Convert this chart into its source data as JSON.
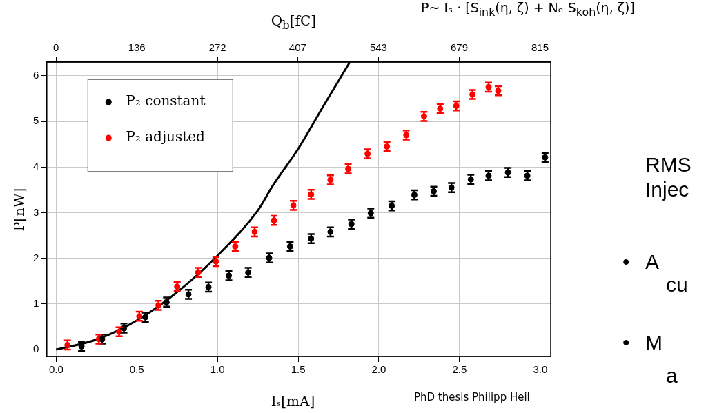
{
  "chart_data": {
    "type": "scatter",
    "xlabel": "Iₛ[mA]",
    "ylabel": "P[nW]",
    "x2label": "Q$_{b}$[fC]",
    "annotations": [
      "P~ Iₛ · [S$_{ink}$(η, ζ) + Nₑ S$_{koh}$(η, ζ)]",
      "PhD thesis Philipp Heil",
      "RMS",
      "Injec",
      "A",
      "cu",
      "M",
      "a",
      "•",
      "•"
    ],
    "xlim": [
      -0.06,
      3.065
    ],
    "xticks": [
      {
        "value": 0,
        "label": "0.0"
      },
      {
        "value": 0.5,
        "label": "0.5"
      },
      {
        "value": 1,
        "label": "1.0"
      },
      {
        "value": 1.5,
        "label": "1.5"
      },
      {
        "value": 2,
        "label": "2.0"
      },
      {
        "value": 2.5,
        "label": "2.5"
      },
      {
        "value": 3,
        "label": "3.0"
      }
    ],
    "x2lim": [
      -16,
      833
    ],
    "x2ticks": [
      0,
      136,
      272,
      407,
      543,
      679,
      815
    ],
    "ylim": [
      -0.15,
      6.3
    ],
    "yticks": [
      0,
      1,
      2,
      3,
      4,
      5,
      6
    ],
    "grid": true,
    "legend": "top left",
    "marker": "circle",
    "series": [
      {
        "name": "P₂ constant",
        "color": "#000000",
        "x": [
          0.157,
          0.285,
          0.42,
          0.553,
          0.684,
          0.82,
          0.944,
          1.07,
          1.19,
          1.32,
          1.45,
          1.58,
          1.7,
          1.83,
          1.95,
          2.08,
          2.22,
          2.34,
          2.45,
          2.57,
          2.68,
          2.8,
          2.92,
          3.03
        ],
        "values": [
          0.07,
          0.23,
          0.47,
          0.71,
          1.04,
          1.21,
          1.37,
          1.62,
          1.69,
          2.01,
          2.26,
          2.43,
          2.58,
          2.75,
          2.99,
          3.15,
          3.39,
          3.47,
          3.55,
          3.73,
          3.81,
          3.88,
          3.81,
          4.21
        ],
        "errors": [
          0.1,
          0.1,
          0.1,
          0.1,
          0.1,
          0.1,
          0.1,
          0.1,
          0.1,
          0.1,
          0.1,
          0.1,
          0.1,
          0.1,
          0.1,
          0.1,
          0.1,
          0.1,
          0.1,
          0.1,
          0.1,
          0.1,
          0.1,
          0.1
        ]
      },
      {
        "name": "P₂ adjusted",
        "color": "#ff0000",
        "x": [
          0.07,
          0.265,
          0.39,
          0.515,
          0.634,
          0.75,
          0.88,
          0.99,
          1.11,
          1.23,
          1.35,
          1.47,
          1.58,
          1.7,
          1.81,
          1.93,
          2.05,
          2.17,
          2.28,
          2.38,
          2.48,
          2.58,
          2.68,
          2.74
        ],
        "values": [
          0.1,
          0.23,
          0.39,
          0.73,
          0.97,
          1.38,
          1.69,
          1.93,
          2.26,
          2.58,
          2.83,
          3.16,
          3.4,
          3.72,
          3.96,
          4.29,
          4.45,
          4.7,
          5.11,
          5.28,
          5.34,
          5.59,
          5.75,
          5.67
        ],
        "errors": [
          0.1,
          0.1,
          0.1,
          0.1,
          0.1,
          0.1,
          0.1,
          0.1,
          0.1,
          0.1,
          0.1,
          0.1,
          0.1,
          0.1,
          0.1,
          0.1,
          0.1,
          0.1,
          0.1,
          0.1,
          0.1,
          0.1,
          0.1,
          0.1
        ]
      },
      {
        "type": "line",
        "color": "#000000",
        "marker": "none",
        "x": [
          0,
          0.25,
          0.5,
          0.75,
          1.0,
          1.25,
          1.342,
          1.5,
          1.65,
          1.82
        ],
        "values": [
          0,
          0.22,
          0.64,
          1.26,
          2.06,
          3.05,
          3.59,
          4.4,
          5.3,
          6.3
        ]
      }
    ]
  }
}
